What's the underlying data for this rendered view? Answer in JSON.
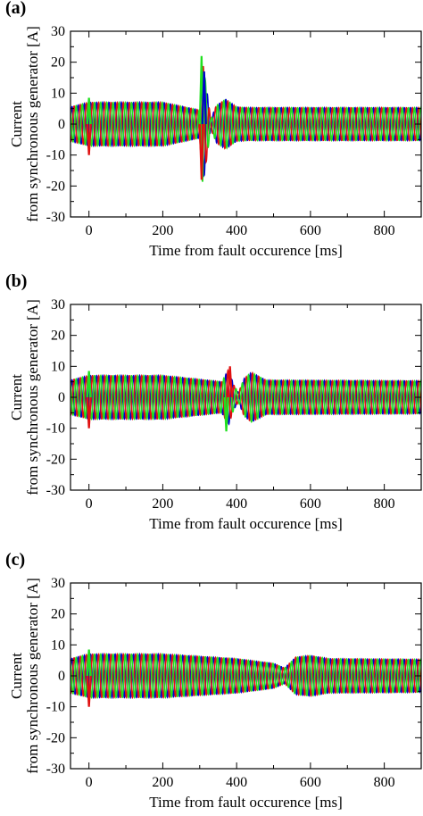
{
  "colors": {
    "phase_a": "#0000cc",
    "phase_b": "#e01010",
    "phase_c": "#20e020",
    "axes": "#000000",
    "background": "#ffffff"
  },
  "chart_data": [
    {
      "type": "line",
      "panel_label": "(a)",
      "xlabel": "Time from fault occurence [ms]",
      "ylabel_line1": "Current",
      "ylabel_line2": "from synchronous generator [A]",
      "xlim": [
        -50,
        900
      ],
      "ylim": [
        -30,
        30
      ],
      "x_ticks": [
        0,
        200,
        400,
        600,
        800
      ],
      "y_ticks": [
        -30,
        -20,
        -10,
        0,
        10,
        20,
        30
      ],
      "grid": false,
      "frequency_hz": 60,
      "series": [
        {
          "color": "#0000cc",
          "phase_deg": 0
        },
        {
          "color": "#e01010",
          "phase_deg": 120
        },
        {
          "color": "#20e020",
          "phase_deg": 240
        }
      ],
      "envelope": {
        "t": [
          -50,
          0,
          200,
          300,
          308,
          318,
          330,
          345,
          370,
          400,
          430,
          900
        ],
        "amp": [
          5.5,
          7,
          7,
          4.5,
          20,
          12,
          1.5,
          6,
          8,
          5.5,
          5.3,
          5.3
        ]
      },
      "spikes": [
        {
          "t": 0,
          "peak": -10,
          "color": "#e01010"
        },
        {
          "t": 0,
          "peak": 8.5,
          "color": "#20e020"
        },
        {
          "t": 305,
          "peak": 22,
          "color": "#20e020"
        },
        {
          "t": 305,
          "peak": -18,
          "color": "#e01010"
        },
        {
          "t": 312,
          "peak": 17,
          "color": "#0000cc"
        }
      ]
    },
    {
      "type": "line",
      "panel_label": "(b)",
      "xlabel": "Time from fault occurence [ms]",
      "ylabel_line1": "Current",
      "ylabel_line2": "from synchronous generator [A]",
      "xlim": [
        -50,
        900
      ],
      "ylim": [
        -30,
        30
      ],
      "x_ticks": [
        0,
        200,
        400,
        600,
        800
      ],
      "y_ticks": [
        -30,
        -20,
        -10,
        0,
        10,
        20,
        30
      ],
      "grid": false,
      "frequency_hz": 60,
      "series": [
        {
          "color": "#0000cc",
          "phase_deg": 0
        },
        {
          "color": "#e01010",
          "phase_deg": 120
        },
        {
          "color": "#20e020",
          "phase_deg": 240
        }
      ],
      "envelope": {
        "t": [
          -50,
          0,
          200,
          360,
          378,
          392,
          405,
          420,
          440,
          480,
          900
        ],
        "amp": [
          5.5,
          7,
          7,
          5,
          9,
          4,
          1.5,
          6,
          8,
          5.5,
          5.3
        ]
      },
      "spikes": [
        {
          "t": 0,
          "peak": -10,
          "color": "#e01010"
        },
        {
          "t": 0,
          "peak": 8.5,
          "color": "#20e020"
        },
        {
          "t": 382,
          "peak": 10,
          "color": "#e01010"
        },
        {
          "t": 372,
          "peak": -11,
          "color": "#20e020"
        }
      ]
    },
    {
      "type": "line",
      "panel_label": "(c)",
      "xlabel": "Time from fault occurence [ms]",
      "ylabel_line1": "Current",
      "ylabel_line2": "from synchronous generator [A]",
      "xlim": [
        -50,
        900
      ],
      "ylim": [
        -30,
        30
      ],
      "x_ticks": [
        0,
        200,
        400,
        600,
        800
      ],
      "y_ticks": [
        -30,
        -20,
        -10,
        0,
        10,
        20,
        30
      ],
      "grid": false,
      "frequency_hz": 60,
      "series": [
        {
          "color": "#0000cc",
          "phase_deg": 0
        },
        {
          "color": "#e01010",
          "phase_deg": 120
        },
        {
          "color": "#20e020",
          "phase_deg": 240
        }
      ],
      "envelope": {
        "t": [
          -50,
          0,
          200,
          400,
          500,
          530,
          560,
          600,
          650,
          900
        ],
        "amp": [
          5.5,
          7,
          7,
          5.5,
          4,
          2.5,
          6,
          6.5,
          5.5,
          5.3
        ]
      },
      "spikes": [
        {
          "t": 0,
          "peak": -10,
          "color": "#e01010"
        },
        {
          "t": 0,
          "peak": 8.5,
          "color": "#20e020"
        }
      ]
    }
  ]
}
